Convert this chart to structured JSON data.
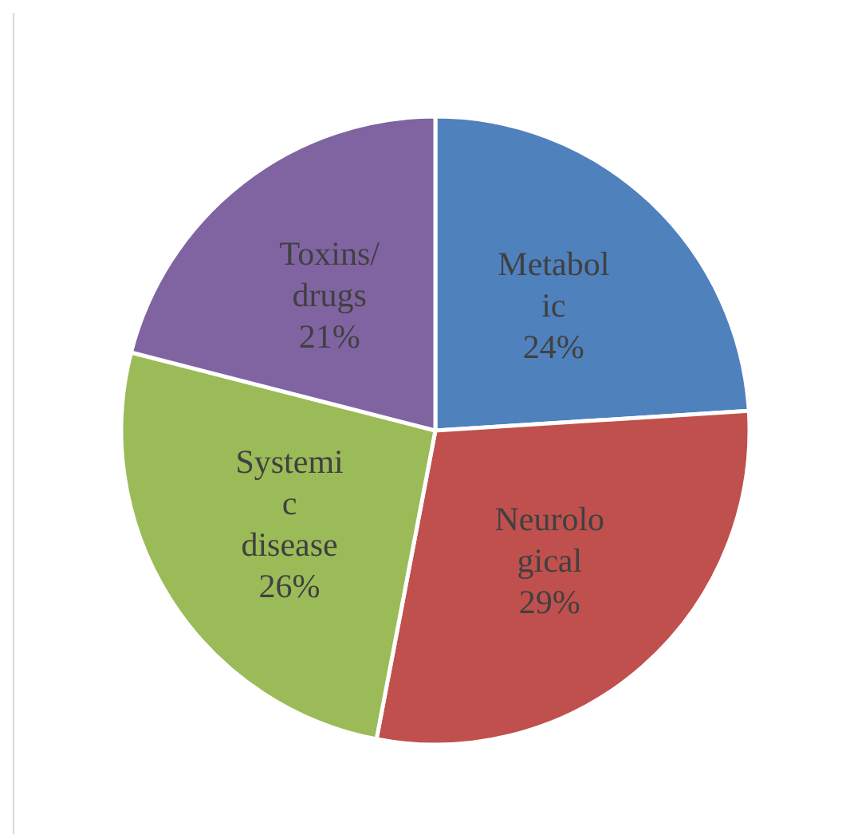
{
  "chart_data": {
    "type": "pie",
    "categories": [
      "Metabolic",
      "Neurological",
      "Systemic disease",
      "Toxins/drugs"
    ],
    "values": [
      24,
      29,
      26,
      21
    ],
    "colors": [
      "#4f81bd",
      "#c0504d",
      "#9bbb59",
      "#8064a2"
    ],
    "value_labels": [
      "24%",
      "29%",
      "26%",
      "21%"
    ]
  }
}
